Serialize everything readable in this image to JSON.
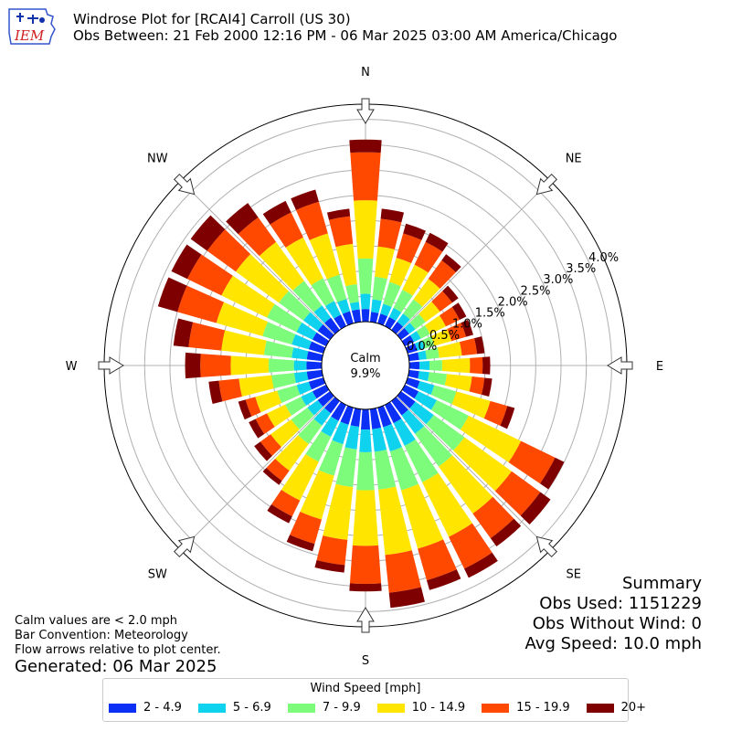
{
  "header": {
    "logo_text": "IEM",
    "title_line1": "Windrose Plot for [RCAI4] Carroll (US 30)",
    "title_line2": "Obs Between: 21 Feb 2000 12:16 PM - 06 Mar 2025 03:00 AM America/Chicago"
  },
  "summary": {
    "title": "Summary",
    "obs_used": "Obs Used: 1151229",
    "obs_without_wind": "Obs Without Wind: 0",
    "avg_speed": "Avg Speed: 10.0 mph"
  },
  "notes": {
    "line1": "Calm values are < 2.0 mph",
    "line2": "Bar Convention: Meteorology",
    "line3": "Flow arrows relative to plot center.",
    "generated": "Generated: 06 Mar 2025"
  },
  "legend": {
    "title": "Wind Speed [mph]",
    "items": [
      {
        "label": "2 - 4.9",
        "color": "#0b2ff5"
      },
      {
        "label": "5 - 6.9",
        "color": "#0fd2ee"
      },
      {
        "label": "7 - 9.9",
        "color": "#7dfc7b"
      },
      {
        "label": "10 - 14.9",
        "color": "#ffe500"
      },
      {
        "label": "15 - 19.9",
        "color": "#ff4800"
      },
      {
        "label": "20+",
        "color": "#7f0000"
      }
    ]
  },
  "chart_data": {
    "type": "windrose",
    "calm_label": "Calm",
    "calm_value": "9.9%",
    "radial_ticks": [
      0.0,
      0.5,
      1.0,
      1.5,
      2.0,
      2.5,
      3.0,
      3.5,
      4.0
    ],
    "radial_tick_labels": [
      "0.0%",
      "0.5%",
      "1.0%",
      "1.5%",
      "2.0%",
      "2.5%",
      "3.0%",
      "3.5%",
      "4.0%"
    ],
    "rmax": 4.3,
    "compass_labels": [
      "N",
      "NE",
      "E",
      "SE",
      "S",
      "SW",
      "W",
      "NW"
    ],
    "speed_bins": [
      "2 - 4.9",
      "5 - 6.9",
      "7 - 9.9",
      "10 - 14.9",
      "15 - 19.9",
      "20+"
    ],
    "bin_colors": [
      "#0b2ff5",
      "#0fd2ee",
      "#7dfc7b",
      "#ffe500",
      "#ff4800",
      "#7f0000"
    ],
    "direction_step_deg": 10,
    "direction_labels_deg": [
      0,
      10,
      20,
      30,
      40,
      50,
      60,
      70,
      80,
      90,
      100,
      110,
      120,
      130,
      140,
      150,
      160,
      170,
      180,
      190,
      200,
      210,
      220,
      230,
      240,
      250,
      260,
      270,
      280,
      290,
      300,
      310,
      320,
      330,
      340,
      350
    ],
    "cumulative_percent": [
      [
        0.25,
        0.55,
        1.25,
        2.4,
        3.35,
        3.6
      ],
      [
        0.2,
        0.45,
        0.9,
        1.5,
        2.05,
        2.25
      ],
      [
        0.2,
        0.4,
        0.85,
        1.35,
        1.85,
        2.05
      ],
      [
        0.2,
        0.4,
        0.8,
        1.35,
        1.85,
        2.05
      ],
      [
        0.2,
        0.4,
        0.75,
        1.25,
        1.7,
        1.85
      ],
      [
        0.2,
        0.35,
        0.6,
        0.95,
        1.25,
        1.4
      ],
      [
        0.2,
        0.35,
        0.55,
        0.9,
        1.2,
        1.35
      ],
      [
        0.2,
        0.35,
        0.55,
        0.9,
        1.2,
        1.35
      ],
      [
        0.2,
        0.35,
        0.6,
        1.05,
        1.35,
        1.5
      ],
      [
        0.2,
        0.4,
        0.65,
        1.2,
        1.45,
        1.6
      ],
      [
        0.2,
        0.4,
        0.75,
        1.25,
        1.5,
        1.65
      ],
      [
        0.25,
        0.55,
        1.0,
        1.7,
        2.05,
        2.2
      ],
      [
        0.3,
        0.7,
        1.4,
        2.55,
        3.3,
        3.5
      ],
      [
        0.35,
        0.8,
        1.55,
        2.7,
        3.4,
        3.65
      ],
      [
        0.35,
        0.8,
        1.6,
        2.75,
        3.35,
        3.55
      ],
      [
        0.4,
        0.9,
        1.7,
        2.9,
        3.6,
        3.8
      ],
      [
        0.4,
        0.9,
        1.7,
        2.9,
        3.55,
        3.75
      ],
      [
        0.4,
        0.85,
        1.6,
        2.9,
        3.65,
        3.95
      ],
      [
        0.4,
        0.85,
        1.6,
        2.7,
        3.45,
        3.6
      ],
      [
        0.35,
        0.8,
        1.55,
        2.6,
        3.1,
        3.25
      ],
      [
        0.35,
        0.75,
        1.4,
        2.3,
        2.8,
        2.95
      ],
      [
        0.35,
        0.7,
        1.25,
        2.1,
        2.45,
        2.6
      ],
      [
        0.3,
        0.6,
        1.05,
        1.7,
        1.95,
        2.05
      ],
      [
        0.3,
        0.55,
        0.95,
        1.45,
        1.7,
        1.85
      ],
      [
        0.3,
        0.55,
        0.9,
        1.3,
        1.55,
        1.7
      ],
      [
        0.3,
        0.55,
        0.95,
        1.4,
        1.6,
        1.75
      ],
      [
        0.3,
        0.55,
        1.0,
        1.65,
        2.05,
        2.25
      ],
      [
        0.3,
        0.55,
        1.05,
        1.8,
        2.4,
        2.7
      ],
      [
        0.3,
        0.6,
        1.15,
        2.0,
        2.65,
        2.95
      ],
      [
        0.3,
        0.65,
        1.25,
        2.2,
        3.0,
        3.4
      ],
      [
        0.3,
        0.65,
        1.3,
        2.3,
        3.05,
        3.4
      ],
      [
        0.3,
        0.65,
        1.25,
        2.3,
        3.0,
        3.4
      ],
      [
        0.3,
        0.6,
        1.2,
        2.15,
        2.75,
        3.1
      ],
      [
        0.25,
        0.55,
        1.05,
        1.95,
        2.5,
        2.75
      ],
      [
        0.25,
        0.5,
        1.0,
        1.85,
        2.5,
        2.75
      ],
      [
        0.25,
        0.4,
        0.75,
        1.55,
        2.1,
        2.25
      ]
    ]
  }
}
